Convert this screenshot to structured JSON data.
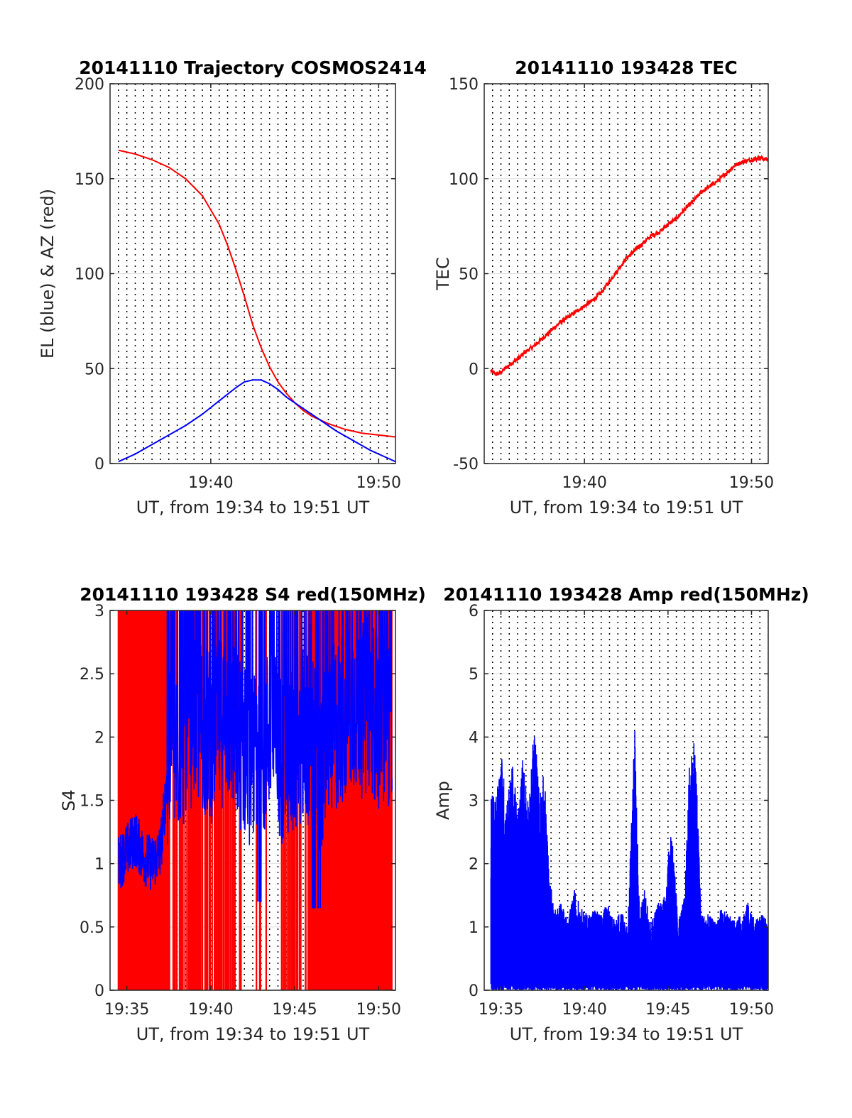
{
  "colors": {
    "el": "#0000ff",
    "az": "#ff0000",
    "tec": "#ff0000",
    "s4_red": "#ff0000",
    "s4_blue": "#0000ff",
    "amp": "#0000ff",
    "grid": "#000000"
  },
  "chart_data": [
    {
      "type": "line",
      "title": "20141110 Trajectory COSMOS2414",
      "xlabel": "UT, from 19:34 to 19:51 UT",
      "ylabel": "EL (blue) & AZ (red)",
      "xlim": [
        34.0,
        51.0
      ],
      "ylim": [
        0,
        200
      ],
      "xticks": [
        {
          "v": 40,
          "label": "19:40"
        },
        {
          "v": 50,
          "label": "19:50"
        }
      ],
      "yticks": [
        {
          "v": 0,
          "label": "0"
        },
        {
          "v": 50,
          "label": "50"
        },
        {
          "v": 100,
          "label": "100"
        },
        {
          "v": 150,
          "label": "150"
        },
        {
          "v": 200,
          "label": "200"
        }
      ],
      "grid": true,
      "series": [
        {
          "key": "az",
          "x": [
            34.5,
            35.5,
            36.5,
            37.5,
            38.5,
            39.5,
            40.5,
            41.0,
            41.5,
            42.0,
            42.5,
            43.0,
            43.5,
            44.0,
            44.5,
            45.0,
            45.5,
            46.0,
            47.0,
            48.0,
            49.0,
            50.0,
            51.0
          ],
          "y": [
            165,
            163,
            160,
            156,
            150,
            141,
            126,
            115,
            102,
            88,
            73,
            61,
            51,
            43,
            37,
            32,
            28,
            25,
            21,
            18,
            16,
            15,
            14
          ]
        },
        {
          "key": "el",
          "x": [
            34.5,
            35.5,
            36.5,
            37.5,
            38.5,
            39.5,
            40.5,
            41.5,
            42.0,
            42.5,
            42.8,
            43.0,
            43.5,
            44.0,
            44.5,
            45.5,
            46.5,
            47.5,
            48.5,
            49.5,
            50.5,
            51.0
          ],
          "y": [
            1,
            5,
            10,
            15,
            20,
            26,
            33,
            40,
            43,
            44,
            44,
            44,
            42,
            39,
            35,
            29,
            23,
            17,
            12,
            7,
            3,
            1
          ]
        }
      ]
    },
    {
      "type": "line",
      "title": "20141110 193428 TEC",
      "xlabel": "UT, from 19:34 to 19:51 UT",
      "ylabel": "TEC",
      "xlim": [
        34.0,
        51.0
      ],
      "ylim": [
        -50,
        150
      ],
      "xticks": [
        {
          "v": 40,
          "label": "19:40"
        },
        {
          "v": 50,
          "label": "19:50"
        }
      ],
      "yticks": [
        {
          "v": -50,
          "label": "-50"
        },
        {
          "v": 0,
          "label": "0"
        },
        {
          "v": 50,
          "label": "50"
        },
        {
          "v": 100,
          "label": "100"
        },
        {
          "v": 150,
          "label": "150"
        }
      ],
      "grid": true,
      "series": [
        {
          "key": "tec",
          "x": [
            34.4,
            34.7,
            35.0,
            35.5,
            36.0,
            36.5,
            37.0,
            37.5,
            38.0,
            38.5,
            39.0,
            39.5,
            40.0,
            40.5,
            41.0,
            41.5,
            42.0,
            42.5,
            43.0,
            43.5,
            44.0,
            44.5,
            45.0,
            45.5,
            46.0,
            46.5,
            47.0,
            47.5,
            48.0,
            48.5,
            49.0,
            49.5,
            50.0,
            50.5,
            51.0
          ],
          "y": [
            -1,
            -3,
            -2,
            2,
            5,
            9,
            12,
            16,
            20,
            24,
            27,
            30,
            33,
            36,
            40,
            46,
            52,
            58,
            62,
            66,
            70,
            72,
            76,
            79,
            84,
            88,
            93,
            96,
            99,
            103,
            107,
            109,
            110,
            111,
            110
          ]
        }
      ]
    },
    {
      "type": "line",
      "title": "20141110 193428 S4 red(150MHz)",
      "xlabel": "UT, from 19:34 to 19:51 UT",
      "ylabel": "S4",
      "xlim": [
        34.0,
        51.0
      ],
      "ylim": [
        0,
        3
      ],
      "xticks": [
        {
          "v": 35,
          "label": "19:35"
        },
        {
          "v": 40,
          "label": "19:40"
        },
        {
          "v": 45,
          "label": "19:45"
        },
        {
          "v": 50,
          "label": "19:50"
        }
      ],
      "yticks": [
        {
          "v": 0,
          "label": "0"
        },
        {
          "v": 0.5,
          "label": "0.5"
        },
        {
          "v": 1,
          "label": "1"
        },
        {
          "v": 1.5,
          "label": "1.5"
        },
        {
          "v": 2,
          "label": "2"
        },
        {
          "v": 2.5,
          "label": "2.5"
        },
        {
          "v": 3,
          "label": "3"
        }
      ],
      "grid": true,
      "series": [
        {
          "key": "s4_red",
          "x": [
            34.5,
            50.8
          ],
          "y": [
            0,
            3
          ]
        },
        {
          "key": "s4_blue",
          "x": [
            34.5,
            35.0,
            35.5,
            36.0,
            36.5,
            37.0,
            37.5,
            38.0,
            38.5,
            39.0,
            39.5,
            40.0,
            40.5,
            41.0,
            41.5,
            42.0,
            42.5,
            43.0,
            43.5,
            44.0,
            44.5,
            45.0,
            45.5,
            46.0,
            46.5,
            47.0,
            47.5,
            48.0,
            48.5,
            49.0,
            49.5,
            50.0,
            50.5,
            50.8
          ],
          "y": [
            1.0,
            1.1,
            1.2,
            1.05,
            1.0,
            1.1,
            1.8,
            1.9,
            2.0,
            2.2,
            2.1,
            2.0,
            2.1,
            2.2,
            2.0,
            1.9,
            1.8,
            1.8,
            2.1,
            1.9,
            1.8,
            1.9,
            2.0,
            2.0,
            1.7,
            2.0,
            2.1,
            2.2,
            2.3,
            2.2,
            2.3,
            2.1,
            2.2,
            2.0
          ]
        }
      ]
    },
    {
      "type": "line",
      "title": "20141110 193428 Amp red(150MHz)",
      "xlabel": "UT, from 19:34 to 19:51 UT",
      "ylabel": "Amp",
      "xlim": [
        34.0,
        51.0
      ],
      "ylim": [
        0,
        6
      ],
      "xticks": [
        {
          "v": 35,
          "label": "19:35"
        },
        {
          "v": 40,
          "label": "19:40"
        },
        {
          "v": 45,
          "label": "19:45"
        },
        {
          "v": 50,
          "label": "19:50"
        }
      ],
      "yticks": [
        {
          "v": 0,
          "label": "0"
        },
        {
          "v": 1,
          "label": "1"
        },
        {
          "v": 2,
          "label": "2"
        },
        {
          "v": 3,
          "label": "3"
        },
        {
          "v": 4,
          "label": "4"
        },
        {
          "v": 5,
          "label": "5"
        },
        {
          "v": 6,
          "label": "6"
        }
      ],
      "grid": true,
      "series": [
        {
          "key": "amp",
          "x": [
            34.4,
            34.7,
            35.0,
            35.3,
            35.7,
            36.0,
            36.3,
            36.7,
            37.0,
            37.3,
            37.6,
            37.9,
            38.2,
            38.6,
            39.0,
            39.4,
            39.8,
            40.2,
            40.6,
            41.0,
            41.4,
            41.8,
            42.2,
            42.6,
            43.0,
            43.3,
            43.6,
            44.0,
            44.4,
            44.8,
            45.2,
            45.6,
            46.0,
            46.3,
            46.6,
            47.0,
            47.4,
            47.8,
            48.2,
            48.6,
            49.0,
            49.4,
            49.8,
            50.2,
            50.6,
            51.0
          ],
          "y": [
            3.2,
            3.0,
            3.9,
            3.0,
            3.6,
            2.8,
            3.7,
            3.0,
            4.3,
            3.1,
            3.5,
            1.8,
            1.3,
            1.4,
            1.1,
            1.6,
            1.3,
            1.2,
            1.3,
            1.2,
            1.4,
            1.1,
            1.3,
            1.0,
            4.3,
            1.2,
            1.6,
            1.1,
            1.4,
            1.5,
            2.7,
            1.1,
            1.5,
            3.7,
            4.1,
            1.2,
            1.2,
            1.1,
            1.3,
            1.2,
            1.1,
            1.2,
            1.4,
            1.1,
            1.2,
            1.1
          ]
        }
      ]
    }
  ]
}
